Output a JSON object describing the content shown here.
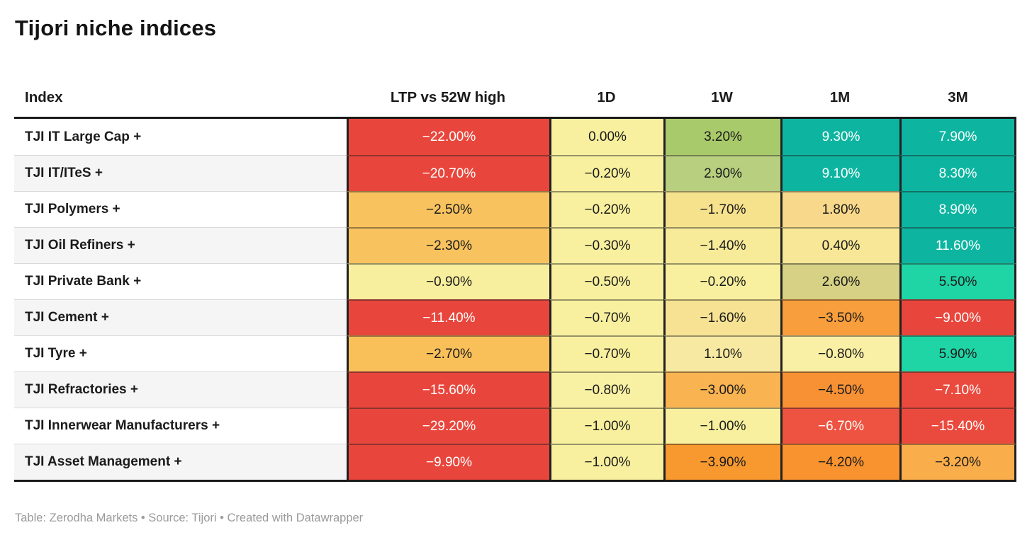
{
  "title": "Tijori niche indices",
  "footer": "Table: Zerodha Markets • Source: Tijori • Created with Datawrapper",
  "chart_data": {
    "type": "table",
    "title": "Tijori niche indices",
    "columns": [
      "Index",
      "LTP vs 52W high",
      "1D",
      "1W",
      "1M",
      "3M"
    ],
    "rows": [
      {
        "index": "TJI IT Large Cap +",
        "values": [
          "−22.00%",
          "0.00%",
          "3.20%",
          "9.30%",
          "7.90%"
        ],
        "bg": [
          "#e8463c",
          "#f8f09e",
          "#a9ca6a",
          "#0db5a1",
          "#0db5a1"
        ],
        "fg": [
          "#ffffff",
          "#1a1a1a",
          "#1a1a1a",
          "#ffffff",
          "#ffffff"
        ]
      },
      {
        "index": "TJI IT/ITeS +",
        "values": [
          "−20.70%",
          "−0.20%",
          "2.90%",
          "9.10%",
          "8.30%"
        ],
        "bg": [
          "#e8463c",
          "#f8f09e",
          "#b7cf7e",
          "#0db5a1",
          "#0db5a1"
        ],
        "fg": [
          "#ffffff",
          "#1a1a1a",
          "#1a1a1a",
          "#ffffff",
          "#ffffff"
        ]
      },
      {
        "index": "TJI Polymers +",
        "values": [
          "−2.50%",
          "−0.20%",
          "−1.70%",
          "1.80%",
          "8.90%"
        ],
        "bg": [
          "#f8c35f",
          "#f8f09e",
          "#f6e18c",
          "#f8d88a",
          "#0db5a1"
        ],
        "fg": [
          "#1a1a1a",
          "#1a1a1a",
          "#1a1a1a",
          "#1a1a1a",
          "#ffffff"
        ]
      },
      {
        "index": "TJI Oil Refiners +",
        "values": [
          "−2.30%",
          "−0.30%",
          "−1.40%",
          "0.40%",
          "11.60%"
        ],
        "bg": [
          "#f8c35f",
          "#f8f09e",
          "#f7ea99",
          "#f7e796",
          "#0db5a1"
        ],
        "fg": [
          "#1a1a1a",
          "#1a1a1a",
          "#1a1a1a",
          "#1a1a1a",
          "#ffffff"
        ]
      },
      {
        "index": "TJI Private Bank +",
        "values": [
          "−0.90%",
          "−0.50%",
          "−0.20%",
          "2.60%",
          "5.50%"
        ],
        "bg": [
          "#f8ef9e",
          "#f8f09e",
          "#f8f09e",
          "#d6d184",
          "#1fd5a5"
        ],
        "fg": [
          "#1a1a1a",
          "#1a1a1a",
          "#1a1a1a",
          "#1a1a1a",
          "#1a1a1a"
        ]
      },
      {
        "index": "TJI Cement +",
        "values": [
          "−11.40%",
          "−0.70%",
          "−1.60%",
          "−3.50%",
          "−9.00%"
        ],
        "bg": [
          "#e8463c",
          "#f8f09e",
          "#f6e292",
          "#f99e3c",
          "#e8463c"
        ],
        "fg": [
          "#ffffff",
          "#1a1a1a",
          "#1a1a1a",
          "#1a1a1a",
          "#ffffff"
        ]
      },
      {
        "index": "TJI Tyre +",
        "values": [
          "−2.70%",
          "−0.70%",
          "1.10%",
          "−0.80%",
          "5.90%"
        ],
        "bg": [
          "#f9c05a",
          "#f8f09e",
          "#f7e9a1",
          "#f9f0a6",
          "#1fd5a5"
        ],
        "fg": [
          "#1a1a1a",
          "#1a1a1a",
          "#1a1a1a",
          "#1a1a1a",
          "#1a1a1a"
        ]
      },
      {
        "index": "TJI Refractories +",
        "values": [
          "−15.60%",
          "−0.80%",
          "−3.00%",
          "−4.50%",
          "−7.10%"
        ],
        "bg": [
          "#e8463c",
          "#f8f0a3",
          "#f9b351",
          "#f89134",
          "#ea4a3d"
        ],
        "fg": [
          "#ffffff",
          "#1a1a1a",
          "#1a1a1a",
          "#1a1a1a",
          "#ffffff"
        ]
      },
      {
        "index": "TJI Innerwear Manufacturers +",
        "values": [
          "−29.20%",
          "−1.00%",
          "−1.00%",
          "−6.70%",
          "−15.40%"
        ],
        "bg": [
          "#e8463c",
          "#f8f09e",
          "#f8f09e",
          "#ed5340",
          "#ea4a3d"
        ],
        "fg": [
          "#ffffff",
          "#1a1a1a",
          "#1a1a1a",
          "#ffffff",
          "#ffffff"
        ]
      },
      {
        "index": "TJI Asset Management +",
        "values": [
          "−9.90%",
          "−1.00%",
          "−3.90%",
          "−4.20%",
          "−3.20%"
        ],
        "bg": [
          "#e8463c",
          "#f8f09e",
          "#f8992f",
          "#f89330",
          "#faae4b"
        ],
        "fg": [
          "#ffffff",
          "#1a1a1a",
          "#1a1a1a",
          "#1a1a1a",
          "#1a1a1a"
        ]
      }
    ],
    "footer": "Table: Zerodha Markets • Source: Tijori • Created with Datawrapper",
    "palette": {
      "strong_negative": "#e8463c",
      "neutral": "#f8f09e",
      "mild_positive": "#a9ca6a",
      "strong_positive": "#0db5a1",
      "bright_positive": "#1fd5a5",
      "mild_negative": "#f89134"
    }
  }
}
